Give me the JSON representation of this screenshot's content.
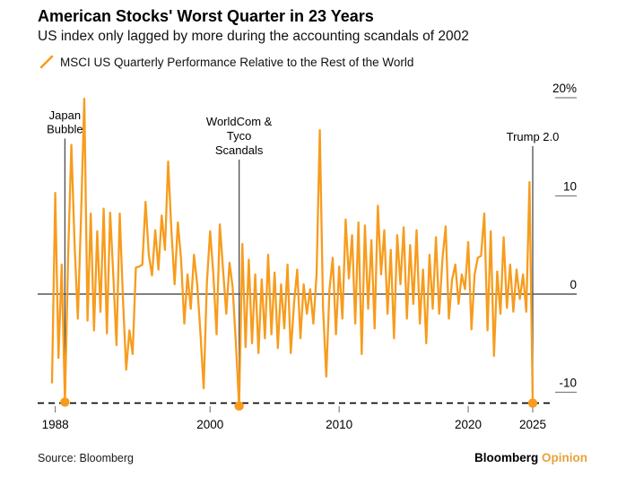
{
  "header": {
    "title": "American Stocks' Worst Quarter in 23 Years",
    "subtitle": "US index only lagged by more during the accounting scandals of 2002"
  },
  "legend": {
    "label": "MSCI US Quarterly Performance Relative to the Rest of the World"
  },
  "footer": {
    "source": "Source: Bloomberg",
    "brand": "Bloomberg",
    "brand_suffix": "Opinion"
  },
  "colors": {
    "series_orange": "#F79C1D",
    "brand_opinion_orange": "#E9A23B",
    "annotation_line_gray": "#4D4D4D",
    "axis_gray": "#808080",
    "zero_line_black": "#000000",
    "dashed_line_black": "#000000",
    "text_black": "#000000"
  },
  "chart_data": {
    "type": "line",
    "title": "MSCI US Quarterly Performance Relative to the Rest of the World",
    "unit": "%",
    "frequency": "quarterly",
    "start_year": 1987.75,
    "ylim": [
      -13,
      21
    ],
    "grid": false,
    "legend_position": "top-left",
    "yticks": [
      {
        "label": "20%",
        "value": 20
      },
      {
        "label": "10",
        "value": 10
      },
      {
        "label": "0",
        "value": 0
      },
      {
        "label": "-10",
        "value": -10
      }
    ],
    "xticks": [
      {
        "label": "1988",
        "year": 1988
      },
      {
        "label": "2000",
        "year": 2000
      },
      {
        "label": "2010",
        "year": 2010
      },
      {
        "label": "2020",
        "year": 2020
      },
      {
        "label": "2025",
        "year": 2025
      }
    ],
    "threshold_line": {
      "value": -11.1,
      "style": "dashed"
    },
    "annotations": [
      {
        "label": "Japan\nBubble",
        "index": 4,
        "value": -11.0
      },
      {
        "label": "WorldCom &\nTyco\nScandals",
        "index": 58,
        "value": -11.4
      },
      {
        "label": "Trump 2.0",
        "index": 149,
        "value": -11.1
      }
    ],
    "values": [
      -9.0,
      10.3,
      -6.5,
      3.0,
      -11.0,
      4.0,
      15.2,
      5.0,
      -2.5,
      8.0,
      19.9,
      -2.7,
      8.2,
      -3.7,
      6.4,
      -1.8,
      8.7,
      -4.0,
      8.3,
      2.0,
      -5.2,
      8.2,
      -0.5,
      -7.7,
      -3.7,
      -6.1,
      2.7,
      2.8,
      3.0,
      9.4,
      4.0,
      1.9,
      6.5,
      2.5,
      8.0,
      4.5,
      13.5,
      6.5,
      1.0,
      7.3,
      3.5,
      -3.0,
      2.0,
      -1.5,
      4.0,
      1.0,
      -4.0,
      -9.6,
      1.2,
      6.4,
      2.0,
      -4.1,
      7.1,
      2.5,
      -2.0,
      3.2,
      0.7,
      -5.0,
      -11.4,
      5.1,
      -5.4,
      3.5,
      -5.0,
      2.0,
      -6.0,
      1.5,
      -4.5,
      4.0,
      -4.1,
      2.2,
      -5.5,
      1.0,
      -3.5,
      3.0,
      -6.0,
      -1.0,
      2.5,
      -4.5,
      1.0,
      -2.0,
      0.5,
      -3.0,
      2.0,
      16.7,
      -1.4,
      -8.4,
      0.5,
      3.7,
      -4.1,
      2.8,
      -2.5,
      7.6,
      1.6,
      6.0,
      -3.0,
      7.3,
      -6.1,
      7.0,
      -1.5,
      5.5,
      -3.5,
      9.0,
      2.0,
      6.5,
      -2.0,
      4.5,
      -4.5,
      6.0,
      1.0,
      6.8,
      -2.5,
      5.0,
      -1.0,
      6.5,
      -3.0,
      2.5,
      -5.0,
      4.0,
      -1.5,
      5.8,
      -2.0,
      3.5,
      6.9,
      -2.5,
      1.5,
      3.0,
      -1.0,
      2.0,
      0.5,
      5.3,
      -3.6,
      2.0,
      3.7,
      3.9,
      8.2,
      -3.7,
      6.4,
      -6.3,
      2.3,
      -2.0,
      5.8,
      -1.4,
      3.0,
      -1.8,
      2.5,
      -0.5,
      2.0,
      -1.8,
      11.4,
      -11.1
    ]
  }
}
